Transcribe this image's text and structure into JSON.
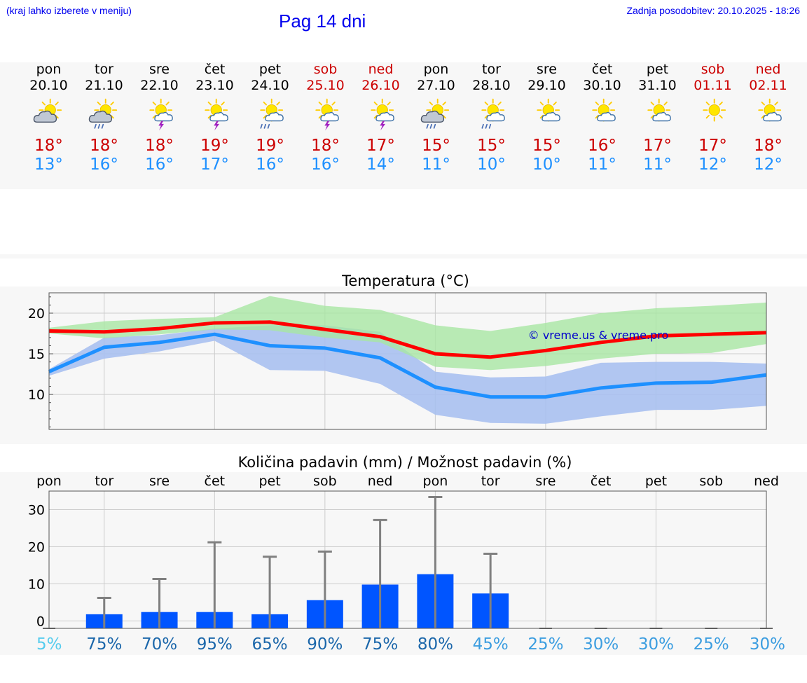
{
  "header": {
    "hint": "(kraj lahko izberete v meniju)",
    "title": "Pag 14 dni",
    "updated": "Zadnja posodobitev: 20.10.2025 - 18:26"
  },
  "colors": {
    "tmax": "#ff0000",
    "tmin": "#1e90ff",
    "maxband": "#a8e6a3",
    "minband": "#a8c0f0",
    "overlap": "#7cc1a8",
    "bar": "#0055ff",
    "err": "#808080"
  },
  "days": [
    {
      "name": "pon",
      "date": "20.10",
      "weekend": false,
      "icon": "partly-cloudy-icon",
      "tmax": "18°",
      "tmin": "13°"
    },
    {
      "name": "tor",
      "date": "21.10",
      "weekend": false,
      "icon": "rain-showers-icon",
      "tmax": "18°",
      "tmin": "16°"
    },
    {
      "name": "sre",
      "date": "22.10",
      "weekend": false,
      "icon": "thunderstorm-icon",
      "tmax": "18°",
      "tmin": "16°"
    },
    {
      "name": "čet",
      "date": "23.10",
      "weekend": false,
      "icon": "thunderstorm-icon",
      "tmax": "19°",
      "tmin": "17°"
    },
    {
      "name": "pet",
      "date": "24.10",
      "weekend": false,
      "icon": "sun-rain-icon",
      "tmax": "19°",
      "tmin": "16°"
    },
    {
      "name": "sob",
      "date": "25.10",
      "weekend": true,
      "icon": "thunderstorm-icon",
      "tmax": "18°",
      "tmin": "16°"
    },
    {
      "name": "ned",
      "date": "26.10",
      "weekend": true,
      "icon": "thunderstorm-icon",
      "tmax": "17°",
      "tmin": "14°"
    },
    {
      "name": "pon",
      "date": "27.10",
      "weekend": false,
      "icon": "heavy-rain-icon",
      "tmax": "15°",
      "tmin": "11°"
    },
    {
      "name": "tor",
      "date": "28.10",
      "weekend": false,
      "icon": "sun-rain-icon",
      "tmax": "15°",
      "tmin": "10°"
    },
    {
      "name": "sre",
      "date": "29.10",
      "weekend": false,
      "icon": "sun-small-cloud-icon",
      "tmax": "15°",
      "tmin": "10°"
    },
    {
      "name": "čet",
      "date": "30.10",
      "weekend": false,
      "icon": "sun-small-cloud-icon",
      "tmax": "16°",
      "tmin": "11°"
    },
    {
      "name": "pet",
      "date": "31.10",
      "weekend": false,
      "icon": "sun-small-cloud-icon",
      "tmax": "17°",
      "tmin": "11°"
    },
    {
      "name": "sob",
      "date": "01.11",
      "weekend": true,
      "icon": "sunny-icon",
      "tmax": "17°",
      "tmin": "12°"
    },
    {
      "name": "ned",
      "date": "02.11",
      "weekend": true,
      "icon": "sun-small-cloud-icon",
      "tmax": "18°",
      "tmin": "12°"
    }
  ],
  "chart_data": [
    {
      "type": "line",
      "title": "Temperatura (°C)",
      "watermark": "© vreme.us & vreme.pro",
      "categories": [
        "20.10",
        "21.10",
        "22.10",
        "23.10",
        "24.10",
        "25.10",
        "26.10",
        "27.10",
        "28.10",
        "29.10",
        "30.10",
        "31.10",
        "01.11",
        "02.11"
      ],
      "ylim": [
        5.7,
        22.5
      ],
      "yticks": [
        10,
        15,
        20
      ],
      "grid": true,
      "series": [
        {
          "name": "max",
          "values": [
            17.8,
            17.7,
            18.1,
            18.8,
            18.9,
            18.0,
            17.1,
            15.0,
            14.6,
            15.4,
            16.4,
            17.2,
            17.4,
            17.6
          ]
        },
        {
          "name": "min",
          "values": [
            12.8,
            15.8,
            16.4,
            17.4,
            16.0,
            15.7,
            14.5,
            10.9,
            9.7,
            9.7,
            10.8,
            11.4,
            11.5,
            12.4
          ]
        },
        {
          "name": "max-range",
          "low": [
            17.5,
            16.9,
            17.4,
            18.0,
            17.9,
            17.0,
            16.4,
            13.4,
            13.0,
            13.5,
            14.4,
            15.0,
            15.1,
            16.2
          ],
          "high": [
            18.2,
            19.0,
            19.3,
            19.5,
            22.1,
            20.9,
            20.4,
            18.5,
            17.8,
            18.8,
            20.0,
            20.6,
            20.9,
            21.3
          ]
        },
        {
          "name": "min-range",
          "low": [
            12.3,
            14.4,
            15.3,
            16.6,
            13.0,
            12.9,
            11.3,
            7.5,
            6.5,
            6.4,
            7.3,
            8.1,
            8.1,
            8.6
          ],
          "high": [
            13.1,
            17.0,
            17.3,
            18.1,
            18.5,
            18.5,
            17.7,
            12.8,
            12.1,
            12.2,
            13.9,
            14.0,
            14.0,
            13.8
          ]
        }
      ]
    },
    {
      "type": "bar",
      "title": "Količina padavin (mm) / Možnost padavin (%)",
      "categories": [
        "pon",
        "tor",
        "sre",
        "čet",
        "pet",
        "sob",
        "ned",
        "pon",
        "tor",
        "sre",
        "čet",
        "pet",
        "sob",
        "ned"
      ],
      "ylim": [
        -2,
        35
      ],
      "yticks": [
        0,
        10,
        20,
        30
      ],
      "grid": true,
      "values": [
        0,
        1.8,
        2.4,
        2.4,
        1.8,
        5.6,
        9.8,
        12.6,
        7.4,
        0,
        0,
        0,
        0,
        0
      ],
      "errmax": [
        0,
        6.2,
        11.3,
        21.2,
        17.3,
        18.7,
        27.2,
        33.4,
        18.1,
        0,
        0,
        0,
        0,
        0
      ],
      "probability": [
        "5%",
        "75%",
        "70%",
        "95%",
        "65%",
        "90%",
        "75%",
        "80%",
        "45%",
        "25%",
        "30%",
        "30%",
        "25%",
        "30%"
      ],
      "probability_colors": [
        "#55ccee",
        "#1a66aa",
        "#1a66aa",
        "#1a66aa",
        "#1a66aa",
        "#1a66aa",
        "#1a66aa",
        "#1a66aa",
        "#3b9de0",
        "#3b9de0",
        "#3b9de0",
        "#3b9de0",
        "#3b9de0",
        "#3b9de0"
      ]
    }
  ]
}
